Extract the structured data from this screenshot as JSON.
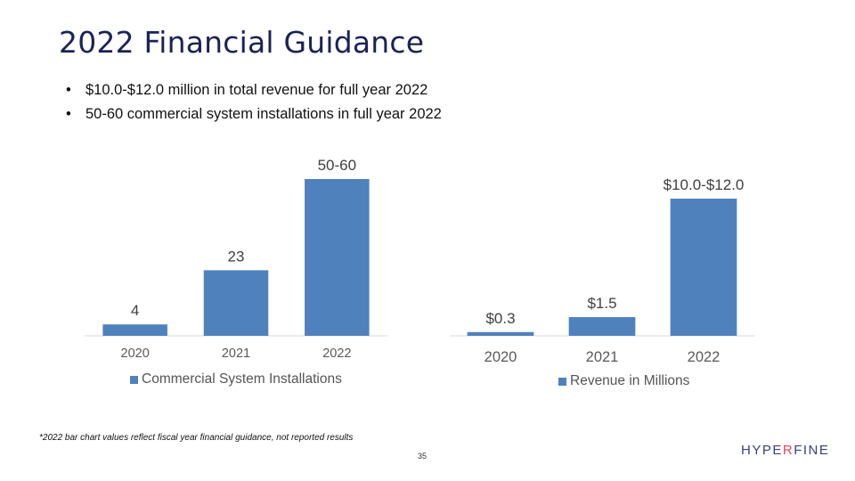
{
  "slide": {
    "title": "2022 Financial Guidance",
    "bullets": [
      "$10.0-$12.0 million in total revenue for full year 2022",
      "50-60 commercial system installations in full year 2022"
    ],
    "footnote": "*2022 bar chart values reflect fiscal year financial guidance, not reported results",
    "page_number": "35",
    "logo": {
      "part1": "HYPE",
      "part2": "R",
      "part3": "FINE"
    },
    "colors": {
      "bar": "#4f81bd",
      "title": "#1b2356",
      "logo_accent": "#e0475c"
    }
  },
  "chart_data": [
    {
      "type": "bar",
      "categories": [
        "2020",
        "2021",
        "2022"
      ],
      "series": [
        {
          "name": "Commercial System Installations",
          "values": [
            4,
            23,
            55
          ]
        }
      ],
      "data_labels": [
        "4",
        "23",
        "50-60"
      ],
      "legend": "bottom",
      "grid": false,
      "ylim": [
        0,
        60
      ]
    },
    {
      "type": "bar",
      "categories": [
        "2020",
        "2021",
        "2022"
      ],
      "series": [
        {
          "name": "Revenue in Millions",
          "values": [
            0.3,
            1.5,
            11.0
          ]
        }
      ],
      "data_labels": [
        "$0.3",
        "$1.5",
        "$10.0-$12.0"
      ],
      "legend": "bottom",
      "grid": false,
      "ylim": [
        0,
        12
      ]
    }
  ]
}
